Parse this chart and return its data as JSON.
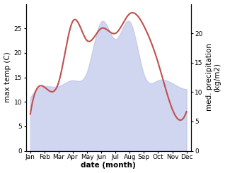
{
  "months": [
    "Jan",
    "Feb",
    "Mar",
    "Apr",
    "May",
    "Jun",
    "Jul",
    "Aug",
    "Sep",
    "Oct",
    "Nov",
    "Dec"
  ],
  "temp_max": [
    7.5,
    13.0,
    14.0,
    26.5,
    22.5,
    25.0,
    24.0,
    28.0,
    25.5,
    18.0,
    8.5,
    8.0
  ],
  "precip": [
    9.0,
    11.0,
    11.0,
    12.0,
    13.5,
    22.0,
    19.0,
    22.0,
    13.0,
    12.0,
    11.5,
    10.5
  ],
  "temp_color": "#c0504d",
  "precip_fill_color": "#b8c0e8",
  "precip_fill_alpha": 0.65,
  "ylabel_left": "max temp (C)",
  "ylabel_right": "med. precipitation\n(kg/m2)",
  "xlabel": "date (month)",
  "ylim_left": [
    0,
    30
  ],
  "ylim_right": [
    0,
    25
  ],
  "yticks_left": [
    0,
    5,
    10,
    15,
    20,
    25
  ],
  "yticks_right": [
    0,
    5,
    10,
    15,
    20
  ],
  "background_color": "#ffffff",
  "label_fontsize": 7.5,
  "tick_fontsize": 6.5
}
